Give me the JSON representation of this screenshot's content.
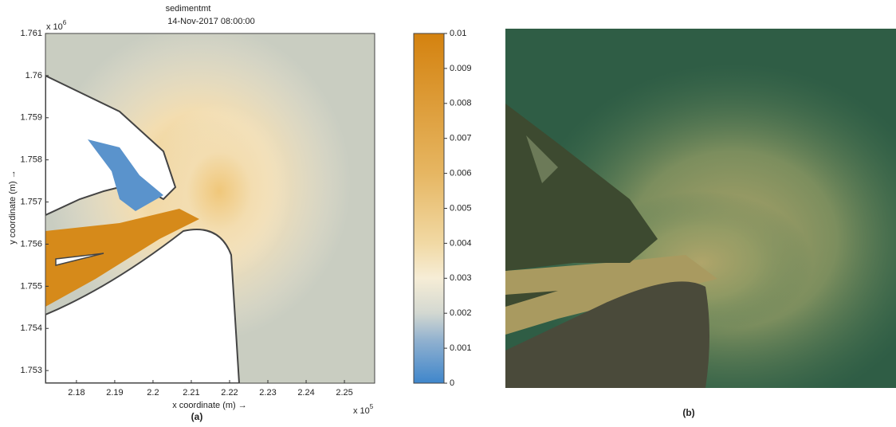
{
  "panel_a": {
    "title": "sedimentmt",
    "subtitle": "14-Nov-2017 08:00:00",
    "x_label": "x coordinate (m) →",
    "y_label": "y coordinate (m) →",
    "x_multiplier": {
      "base": "x 10",
      "exponent": "5"
    },
    "y_multiplier": {
      "base": "x 10",
      "exponent": "6"
    },
    "xlim": [
      2.1719,
      2.2579
    ],
    "xticks": [
      2.18,
      2.19,
      2.2,
      2.21,
      2.22,
      2.23,
      2.24,
      2.25
    ],
    "ylim": [
      1.7527,
      1.761
    ],
    "yticks": [
      1.753,
      1.754,
      1.755,
      1.756,
      1.757,
      1.758,
      1.759,
      1.76,
      1.761
    ],
    "colorbar": {
      "lim": [
        0,
        0.01
      ],
      "ticks": [
        0,
        0.001,
        0.002,
        0.003,
        0.004,
        0.005,
        0.006,
        0.007,
        0.008,
        0.009,
        0.01
      ]
    },
    "caption": "(a)"
  },
  "panel_b": {
    "caption": "(b)"
  }
}
